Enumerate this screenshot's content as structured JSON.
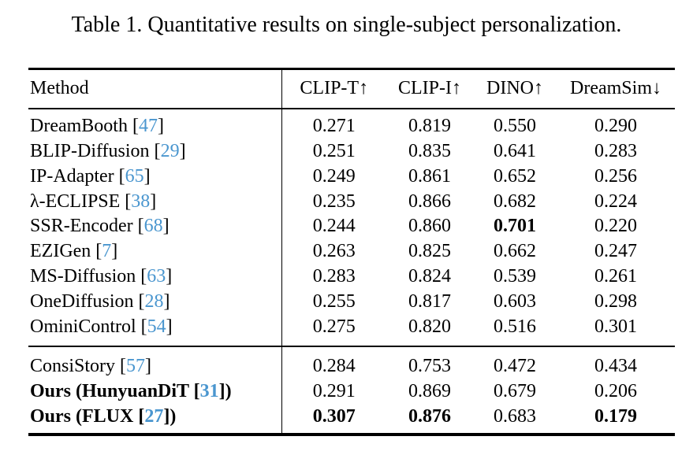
{
  "colors": {
    "background": "#ffffff",
    "text": "#000000",
    "citation_link": "#4a96cf"
  },
  "caption": "Table 1. Quantitative results on single-subject personalization.",
  "table": {
    "columns": [
      "Method",
      "CLIP-T↑",
      "CLIP-I↑",
      "DINO↑",
      "DreamSim↓"
    ],
    "rows": [
      {
        "method_pre": "DreamBooth [",
        "cite": "47",
        "method_post": "]",
        "values": [
          "0.271",
          "0.819",
          "0.550",
          "0.290"
        ],
        "bold_method": false,
        "bold_value_indices": []
      },
      {
        "method_pre": "BLIP-Diffusion [",
        "cite": "29",
        "method_post": "]",
        "values": [
          "0.251",
          "0.835",
          "0.641",
          "0.283"
        ],
        "bold_method": false,
        "bold_value_indices": []
      },
      {
        "method_pre": "IP-Adapter [",
        "cite": "65",
        "method_post": "]",
        "values": [
          "0.249",
          "0.861",
          "0.652",
          "0.256"
        ],
        "bold_method": false,
        "bold_value_indices": []
      },
      {
        "method_pre": "λ-ECLIPSE [",
        "cite": "38",
        "method_post": "]",
        "values": [
          "0.235",
          "0.866",
          "0.682",
          "0.224"
        ],
        "bold_method": false,
        "bold_value_indices": []
      },
      {
        "method_pre": "SSR-Encoder [",
        "cite": "68",
        "method_post": "]",
        "values": [
          "0.244",
          "0.860",
          "0.701",
          "0.220"
        ],
        "bold_method": false,
        "bold_value_indices": [
          2
        ]
      },
      {
        "method_pre": "EZIGen [",
        "cite": "7",
        "method_post": "]",
        "values": [
          "0.263",
          "0.825",
          "0.662",
          "0.247"
        ],
        "bold_method": false,
        "bold_value_indices": []
      },
      {
        "method_pre": "MS-Diffusion [",
        "cite": "63",
        "method_post": "]",
        "values": [
          "0.283",
          "0.824",
          "0.539",
          "0.261"
        ],
        "bold_method": false,
        "bold_value_indices": []
      },
      {
        "method_pre": "OneDiffusion [",
        "cite": "28",
        "method_post": "]",
        "values": [
          "0.255",
          "0.817",
          "0.603",
          "0.298"
        ],
        "bold_method": false,
        "bold_value_indices": []
      },
      {
        "method_pre": "OminiControl [",
        "cite": "54",
        "method_post": "]",
        "values": [
          "0.275",
          "0.820",
          "0.516",
          "0.301"
        ],
        "bold_method": false,
        "bold_value_indices": []
      },
      {
        "method_pre": "ConsiStory [",
        "cite": "57",
        "method_post": "]",
        "values": [
          "0.284",
          "0.753",
          "0.472",
          "0.434"
        ],
        "bold_method": false,
        "bold_value_indices": []
      },
      {
        "method_pre": "Ours (HunyuanDiT [",
        "cite": "31",
        "method_post": "])",
        "values": [
          "0.291",
          "0.869",
          "0.679",
          "0.206"
        ],
        "bold_method": true,
        "bold_value_indices": []
      },
      {
        "method_pre": "Ours (FLUX [",
        "cite": "27",
        "method_post": "])",
        "values": [
          "0.307",
          "0.876",
          "0.683",
          "0.179"
        ],
        "bold_method": true,
        "bold_value_indices": [
          0,
          1,
          3
        ]
      }
    ]
  }
}
